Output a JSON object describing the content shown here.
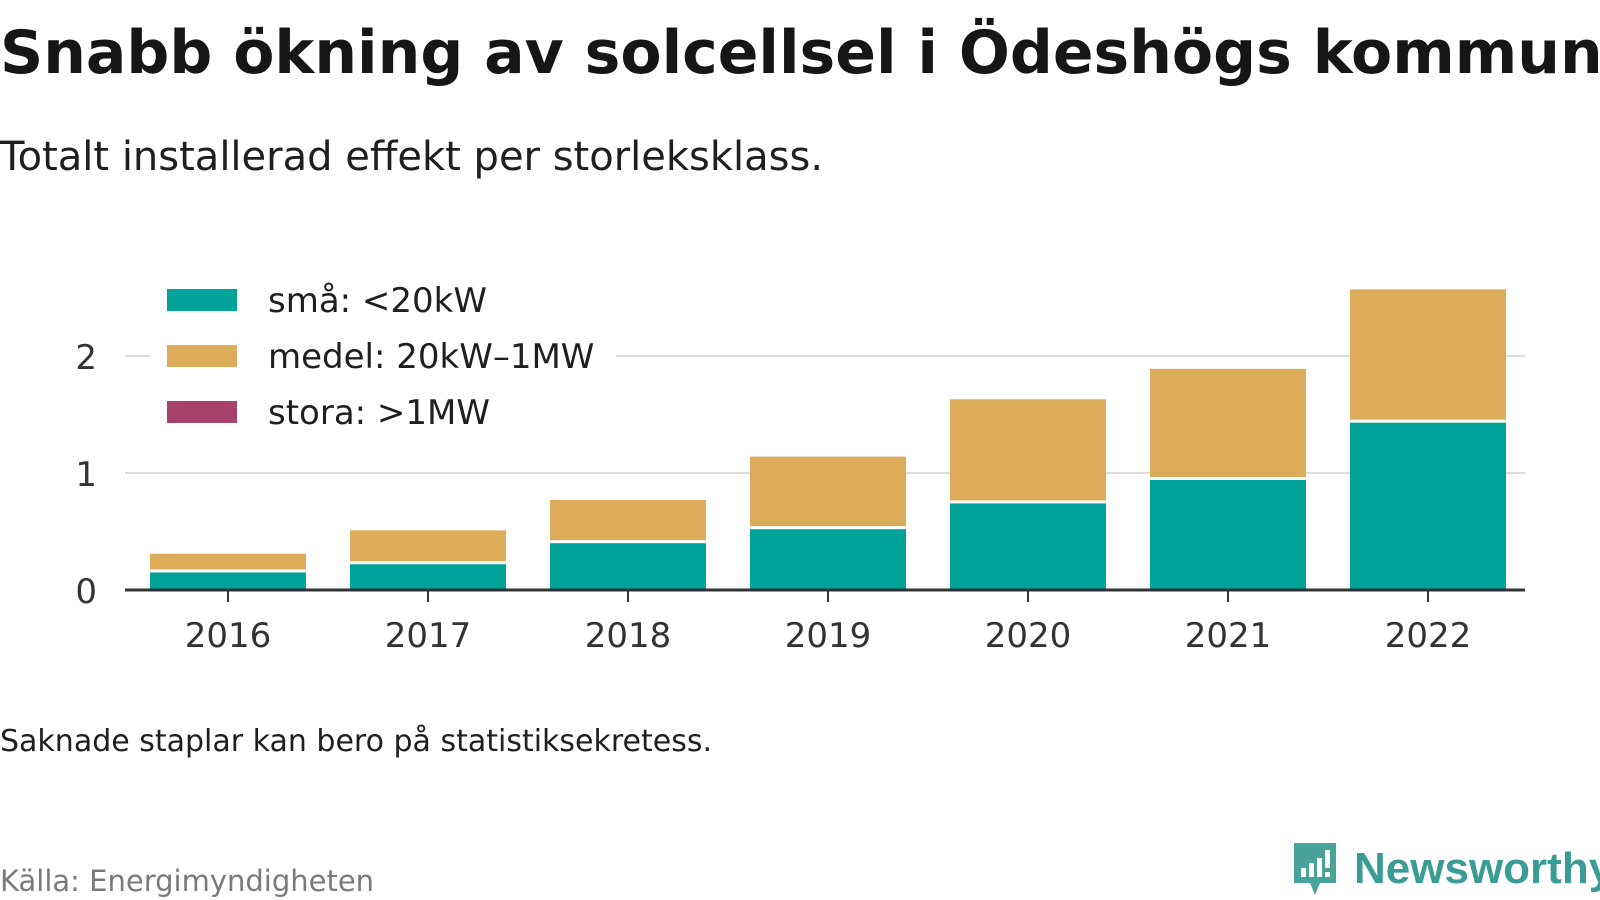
{
  "title": "Snabb ökning av solcellsel i Ödeshögs kommun",
  "subtitle": "Totalt installerad effekt per storleksklass.",
  "note": "Saknade staplar kan bero på statistiksekretess.",
  "source": "Källa: Energimyndigheten",
  "brand": {
    "name": "Newsworthy",
    "icon": "newsworthy-logo-icon",
    "color": "#3a9c94"
  },
  "chart_data": {
    "type": "bar",
    "stacked": true,
    "categories": [
      "2016",
      "2017",
      "2018",
      "2019",
      "2020",
      "2021",
      "2022"
    ],
    "series": [
      {
        "name": "små: <20kW",
        "color": "#00a29a",
        "values": [
          0.15,
          0.22,
          0.4,
          0.52,
          0.74,
          0.94,
          1.43
        ]
      },
      {
        "name": "medel: 20kW–1MW",
        "color": "#dcac5a",
        "values": [
          0.16,
          0.29,
          0.37,
          0.62,
          0.89,
          0.95,
          1.14
        ]
      },
      {
        "name": "stora: >1MW",
        "color": "#a8426a",
        "values": [
          0,
          0,
          0,
          0,
          0,
          0,
          0
        ]
      }
    ],
    "yticks": [
      0,
      1,
      2
    ],
    "ylim": [
      0,
      2.65
    ],
    "grid": true,
    "legend": "top-left"
  }
}
